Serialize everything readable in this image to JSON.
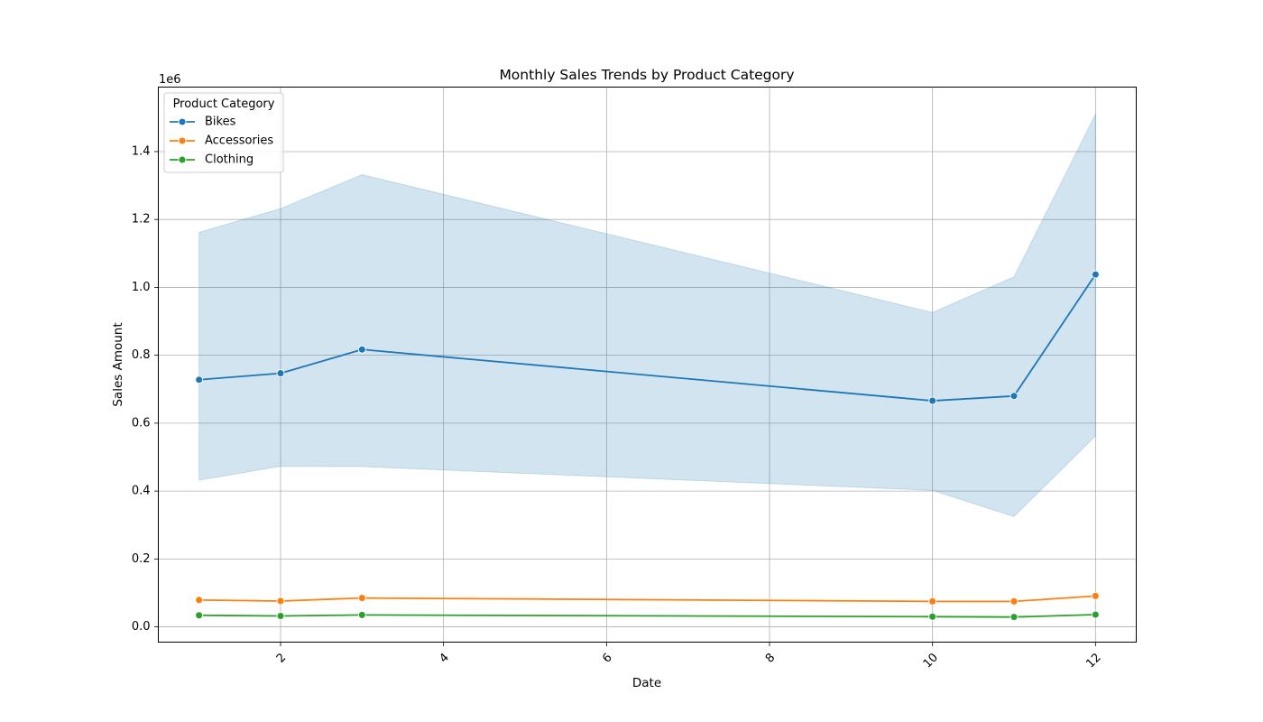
{
  "chart_data": {
    "type": "line",
    "title": "Monthly Sales Trends by Product Category",
    "xlabel": "Date",
    "ylabel": "Sales Amount",
    "y_offset_label": "1e6",
    "xlim": [
      0.5,
      12.5
    ],
    "ylim": [
      -0.045,
      1.59
    ],
    "xticks": [
      2,
      4,
      6,
      8,
      10,
      12
    ],
    "xtick_labels": [
      "2",
      "4",
      "6",
      "8",
      "10",
      "12"
    ],
    "xtick_rotation": 45,
    "yticks": [
      0.0,
      0.2,
      0.4,
      0.6,
      0.8,
      1.0,
      1.2,
      1.4
    ],
    "ytick_labels": [
      "0.0",
      "0.2",
      "0.4",
      "0.6",
      "0.8",
      "1.0",
      "1.2",
      "1.4"
    ],
    "grid": true,
    "legend": {
      "title": "Product Category",
      "placement": "upper left"
    },
    "x": [
      1,
      2,
      3,
      10,
      11,
      12
    ],
    "series": [
      {
        "name": "Bikes",
        "color": "#1f77b4",
        "values": [
          0.728,
          0.747,
          0.817,
          0.666,
          0.68,
          1.038
        ],
        "ci_lower": [
          0.432,
          0.473,
          0.472,
          0.402,
          0.325,
          0.562
        ],
        "ci_upper": [
          1.162,
          1.232,
          1.332,
          0.926,
          1.031,
          1.51
        ]
      },
      {
        "name": "Accessories",
        "color": "#ff7f0e",
        "values": [
          0.079,
          0.076,
          0.085,
          0.075,
          0.075,
          0.091
        ]
      },
      {
        "name": "Clothing",
        "color": "#2ca02c",
        "values": [
          0.034,
          0.032,
          0.035,
          0.03,
          0.029,
          0.036
        ]
      }
    ]
  }
}
